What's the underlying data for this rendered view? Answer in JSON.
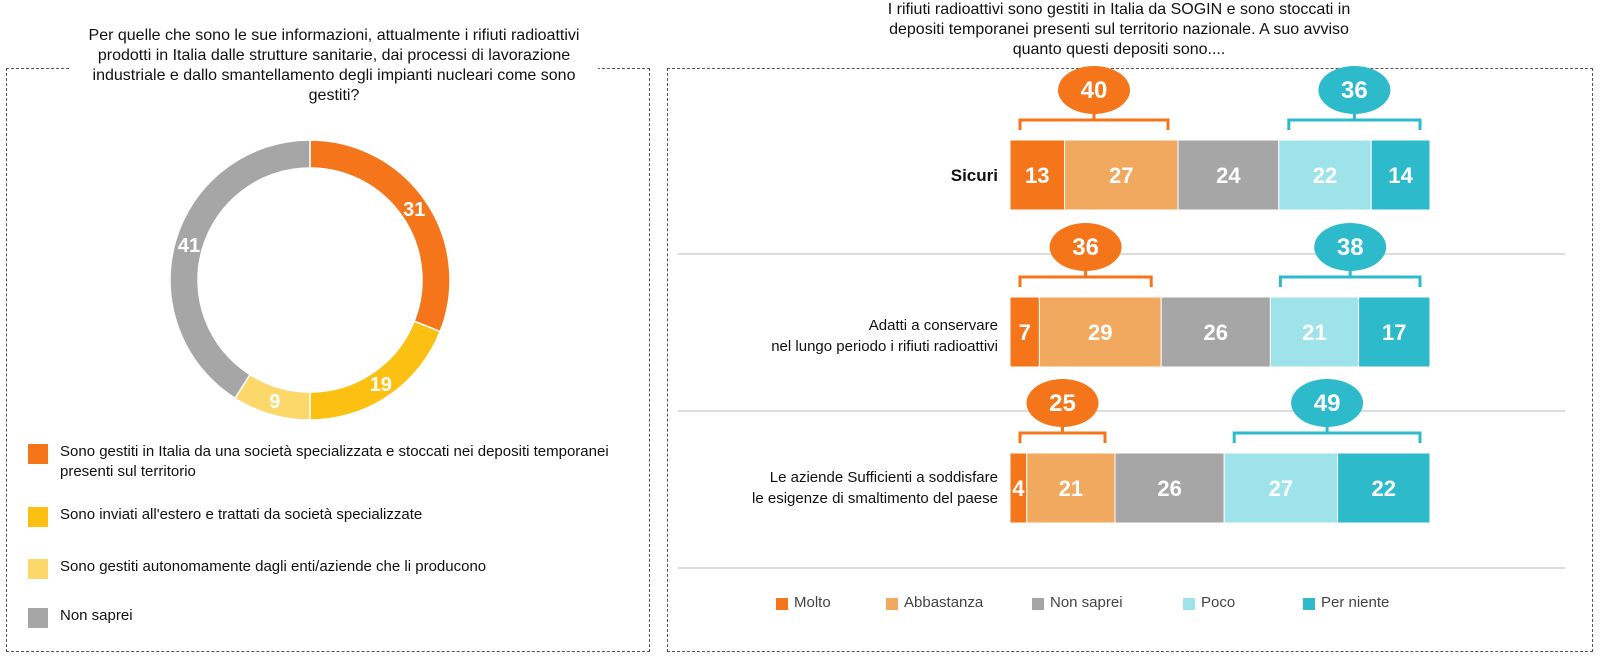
{
  "left_question": "Per quelle che sono le sue informazioni, attualmente i rifiuti radioattivi prodotti in Italia dalle strutture sanitarie, dai processi di lavorazione industriale e dallo smantellamento degli impianti nucleari come sono gestiti?",
  "right_question": "I rifiuti radioattivi sono gestiti in Italia da SOGIN e sono stoccati in depositi temporanei presenti sul territorio nazionale. A suo avviso quanto questi depositi sono....",
  "chart_data": [
    {
      "type": "pie",
      "variant": "donut",
      "labels": [
        "Sono gestiti in Italia da una società specializzata e stoccati nei depositi temporanei presenti sul territorio",
        "Sono inviati all'estero e trattati da società specializzate",
        "Sono gestiti autonomamente dagli enti/aziende che li producono",
        "Non saprei"
      ],
      "values": [
        31,
        19,
        9,
        41
      ],
      "colors": [
        "#F5761A",
        "#FBC012",
        "#FCD86A",
        "#A6A6A6"
      ],
      "legend_position": "bottom"
    },
    {
      "type": "bar",
      "orientation": "horizontal",
      "stacked": true,
      "categories": [
        [
          "Sicuri"
        ],
        [
          "Adatti a conservare",
          "nel lungo periodo i rifiuti radioattivi"
        ],
        [
          "Le aziende Sufficienti a soddisfare",
          "le esigenze di smaltimento del paese"
        ]
      ],
      "series": [
        {
          "name": "Molto",
          "color": "#F5761A",
          "values": [
            13,
            7,
            4
          ]
        },
        {
          "name": "Abbastanza",
          "color": "#F0A95E",
          "values": [
            27,
            29,
            21
          ]
        },
        {
          "name": "Non saprei",
          "color": "#A6A6A6",
          "values": [
            24,
            26,
            26
          ]
        },
        {
          "name": "Poco",
          "color": "#9EE3EA",
          "values": [
            22,
            21,
            27
          ]
        },
        {
          "name": "Per niente",
          "color": "#2DBBCB",
          "values": [
            14,
            17,
            22
          ]
        }
      ],
      "positive_totals": [
        40,
        36,
        25
      ],
      "negative_totals": [
        36,
        38,
        49
      ],
      "positive_color": "#F5761A",
      "negative_color": "#2DBBCB",
      "legend_position": "bottom"
    }
  ]
}
